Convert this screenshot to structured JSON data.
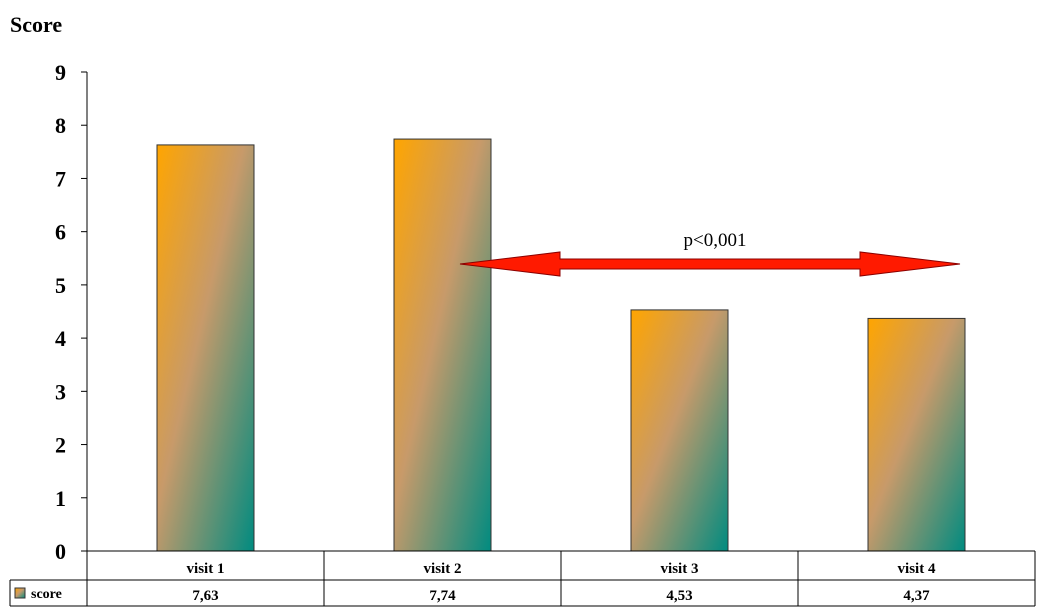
{
  "chart_data": {
    "type": "bar",
    "ylabel": "Score",
    "categories": [
      "visit 1",
      "visit 2",
      "visit 3",
      "visit 4"
    ],
    "series": [
      {
        "name": "score",
        "values": [
          7.63,
          7.74,
          4.53,
          4.37
        ]
      }
    ],
    "value_labels": [
      "7,63",
      "7,74",
      "4,53",
      "4,37"
    ],
    "ylim": [
      0,
      9
    ],
    "yticks": [
      0,
      1,
      2,
      3,
      4,
      5,
      6,
      7,
      8,
      9
    ],
    "grid": false,
    "legend": "left of data table",
    "data_table": true,
    "annotations": [
      {
        "text": "p<0,001",
        "between": [
          "visit 2",
          "visit 4"
        ],
        "type": "double-arrow"
      }
    ],
    "colors": {
      "bar_top": "#FFA500",
      "bar_bottom": "#008B80",
      "arrow": "#FF1A00"
    }
  }
}
